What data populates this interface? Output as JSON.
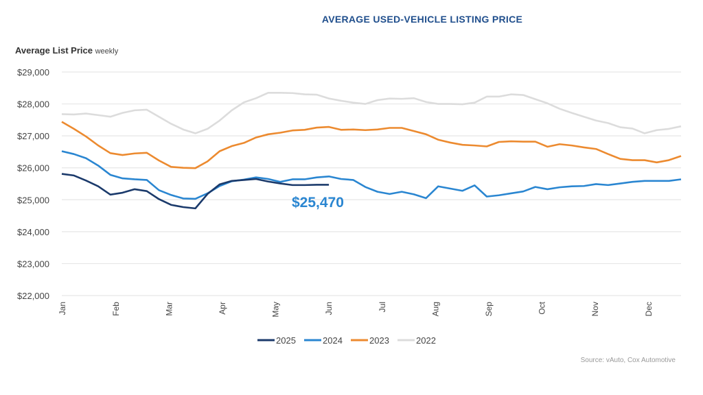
{
  "chart_data": {
    "type": "line",
    "title": "AVERAGE USED-VEHICLE LISTING PRICE",
    "ylabel": "Average List Price",
    "ylabel_note": "weekly",
    "ylim": [
      22000,
      29000
    ],
    "yticks": [
      "$22,000",
      "$23,000",
      "$24,000",
      "$25,000",
      "$26,000",
      "$27,000",
      "$28,000",
      "$29,000"
    ],
    "xticks": [
      "Jan",
      "Feb",
      "Mar",
      "Apr",
      "May",
      "Jun",
      "Jul",
      "Aug",
      "Sep",
      "Oct",
      "Nov",
      "Dec"
    ],
    "grid": true,
    "legend": "bottom",
    "annotation": "$25,470",
    "source": "Source: vAuto, Cox Automotive",
    "series": [
      {
        "name": "2025",
        "color": "#1b3a6b",
        "values": [
          25810,
          25760,
          25600,
          25420,
          25160,
          25220,
          25330,
          25270,
          25020,
          24840,
          24770,
          24730,
          25180,
          25480,
          25590,
          25620,
          25650,
          25570,
          25510,
          25460,
          25460,
          25470,
          25470
        ]
      },
      {
        "name": "2024",
        "color": "#2a86d1",
        "values": [
          26520,
          26430,
          26300,
          26070,
          25780,
          25670,
          25640,
          25620,
          25300,
          25150,
          25040,
          25030,
          25200,
          25430,
          25580,
          25630,
          25700,
          25650,
          25560,
          25640,
          25640,
          25700,
          25730,
          25650,
          25620,
          25400,
          25250,
          25180,
          25250,
          25170,
          25050,
          25420,
          25350,
          25280,
          25450,
          25100,
          25140,
          25200,
          25260,
          25400,
          25330,
          25390,
          25420,
          25430,
          25490,
          25460,
          25510,
          25560,
          25590,
          25590,
          25590,
          25640
        ]
      },
      {
        "name": "2023",
        "color": "#ec8a2f",
        "values": [
          27440,
          27220,
          26980,
          26700,
          26460,
          26400,
          26450,
          26470,
          26230,
          26030,
          26000,
          25990,
          26200,
          26520,
          26680,
          26780,
          26950,
          27050,
          27100,
          27170,
          27190,
          27260,
          27280,
          27190,
          27200,
          27180,
          27200,
          27250,
          27250,
          27150,
          27050,
          26880,
          26790,
          26720,
          26700,
          26670,
          26810,
          26830,
          26820,
          26820,
          26660,
          26740,
          26700,
          26640,
          26590,
          26430,
          26280,
          26240,
          26240,
          26170,
          26240,
          26370
        ]
      },
      {
        "name": "2022",
        "color": "#dcdcdc",
        "values": [
          27680,
          27670,
          27700,
          27650,
          27600,
          27720,
          27800,
          27820,
          27600,
          27380,
          27200,
          27080,
          27220,
          27480,
          27800,
          28050,
          28180,
          28350,
          28350,
          28340,
          28300,
          28290,
          28170,
          28100,
          28040,
          28000,
          28120,
          28170,
          28160,
          28180,
          28060,
          28000,
          28000,
          27990,
          28040,
          28230,
          28230,
          28300,
          28280,
          28150,
          28020,
          27850,
          27720,
          27600,
          27480,
          27400,
          27270,
          27230,
          27080,
          27180,
          27220,
          27300
        ]
      }
    ]
  }
}
